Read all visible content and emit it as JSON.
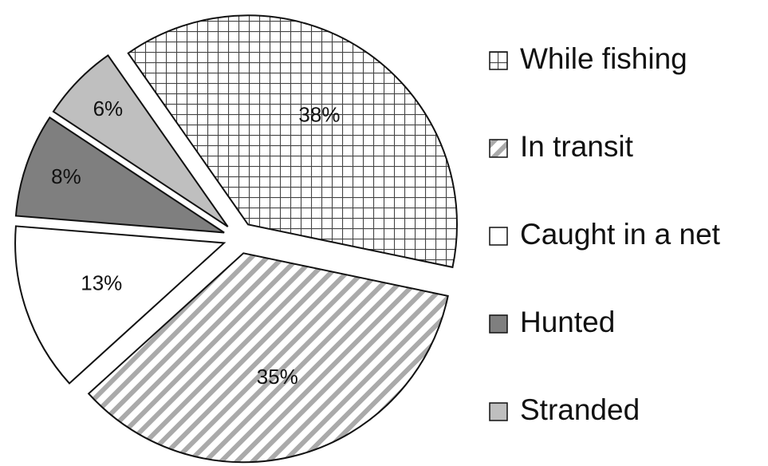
{
  "chart_data": {
    "type": "pie",
    "categories": [
      "While fishing",
      "In transit",
      "Caught in a net",
      "Hunted",
      "Stranded"
    ],
    "values": [
      38,
      35,
      13,
      8,
      6
    ],
    "value_labels": [
      "38%",
      "35%",
      "13%",
      "8%",
      "6%"
    ],
    "colors": [
      "#ffffff",
      "#ffffff",
      "#ffffff",
      "#7f7f7f",
      "#bfbfbf"
    ],
    "patterns": [
      "grid",
      "diagonal",
      "none",
      "none",
      "none"
    ],
    "legend": "right"
  }
}
